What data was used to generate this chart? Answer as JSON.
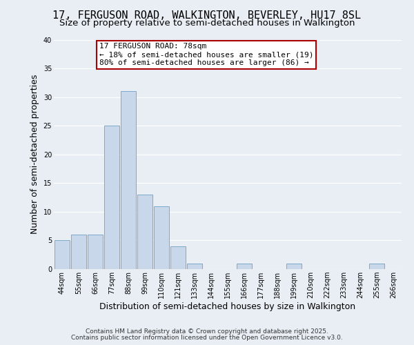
{
  "title": "17, FERGUSON ROAD, WALKINGTON, BEVERLEY, HU17 8SL",
  "subtitle": "Size of property relative to semi-detached houses in Walkington",
  "xlabel": "Distribution of semi-detached houses by size in Walkington",
  "ylabel": "Number of semi-detached properties",
  "categories": [
    "44sqm",
    "55sqm",
    "66sqm",
    "77sqm",
    "88sqm",
    "99sqm",
    "110sqm",
    "121sqm",
    "133sqm",
    "144sqm",
    "155sqm",
    "166sqm",
    "177sqm",
    "188sqm",
    "199sqm",
    "210sqm",
    "222sqm",
    "233sqm",
    "244sqm",
    "255sqm",
    "266sqm"
  ],
  "values": [
    5,
    6,
    6,
    25,
    31,
    13,
    11,
    4,
    1,
    0,
    0,
    1,
    0,
    0,
    1,
    0,
    0,
    0,
    0,
    1,
    0
  ],
  "bar_color": "#c8d8ea",
  "bar_edge_color": "#7aaac8",
  "annotation_text": "17 FERGUSON ROAD: 78sqm\n← 18% of semi-detached houses are smaller (19)\n80% of semi-detached houses are larger (86) →",
  "annotation_box_color": "#ffffff",
  "annotation_box_edge": "#aa0000",
  "ylim": [
    0,
    40
  ],
  "yticks": [
    0,
    5,
    10,
    15,
    20,
    25,
    30,
    35,
    40
  ],
  "background_color": "#e8eef4",
  "grid_color": "#ffffff",
  "footer_line1": "Contains HM Land Registry data © Crown copyright and database right 2025.",
  "footer_line2": "Contains public sector information licensed under the Open Government Licence v3.0.",
  "title_fontsize": 11,
  "subtitle_fontsize": 9.5,
  "axis_label_fontsize": 9,
  "tick_fontsize": 7,
  "annotation_fontsize": 8,
  "footer_fontsize": 6.5
}
